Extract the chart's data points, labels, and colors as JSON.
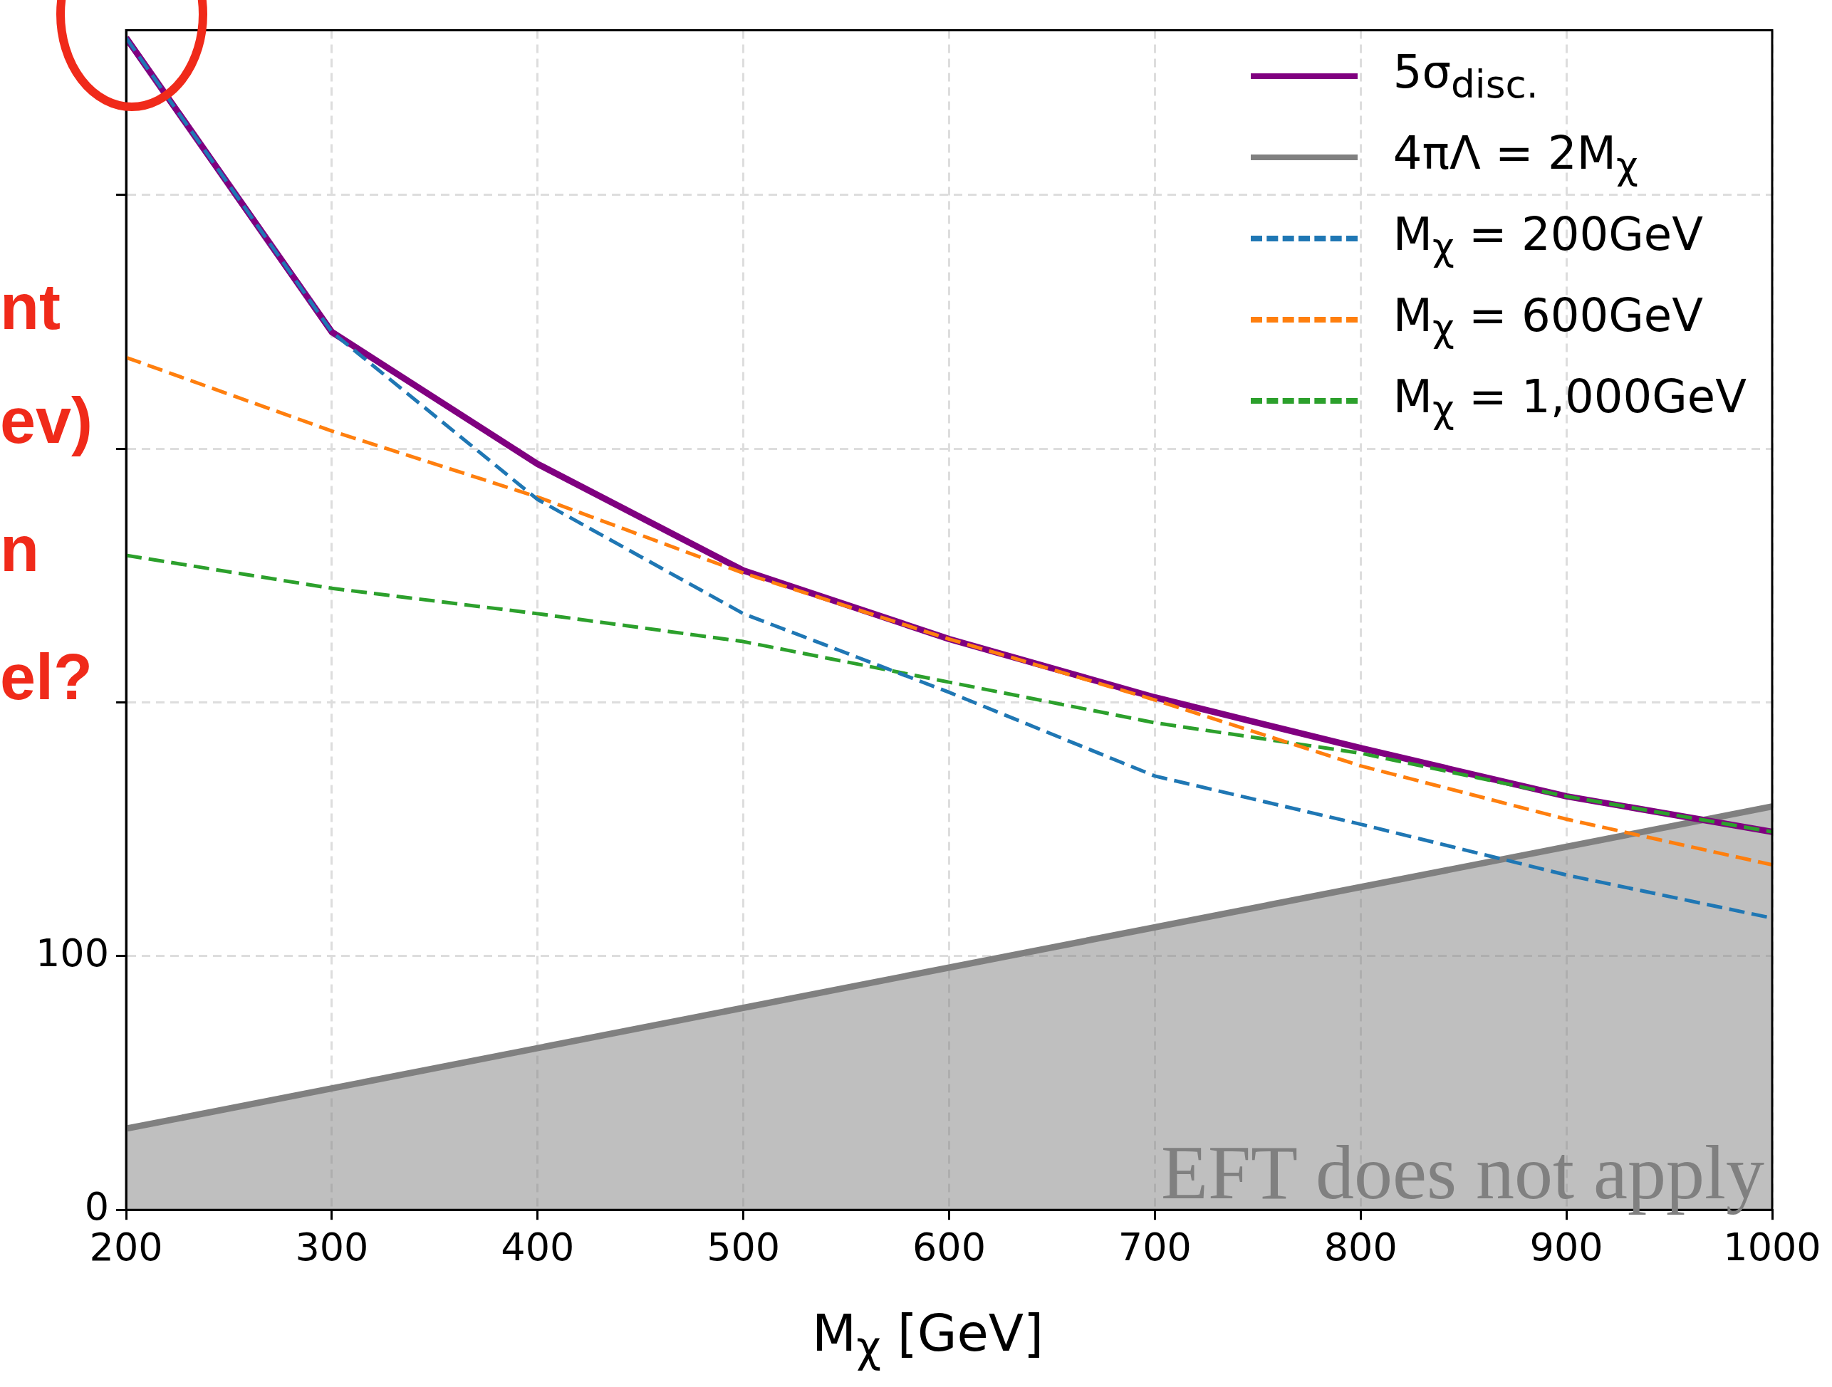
{
  "chart_data": {
    "type": "line",
    "xlabel": "M$_{χ}$ [GeV]",
    "xlim": [
      200,
      1000
    ],
    "xticks": [
      200,
      300,
      400,
      500,
      600,
      700,
      800,
      900,
      1000
    ],
    "ylim": [
      0,
      465
    ],
    "yticks": [
      0,
      100,
      {
        "value": 200,
        "label": null
      },
      {
        "value": 300,
        "label": null
      },
      {
        "value": 400,
        "label": null
      }
    ],
    "grid": true,
    "legend": "top right",
    "marker": "none",
    "annotations": [
      "EFT does not apply",
      "nt",
      "ev)",
      "n",
      "el?"
    ],
    "series": [
      {
        "name": "5σ$_{disc.}$",
        "color": "#800080",
        "line_style": "solid",
        "x": [
          200,
          300,
          400,
          500,
          600,
          700,
          800,
          900,
          1000
        ],
        "values": [
          462,
          346,
          294,
          252,
          225,
          202,
          182,
          163,
          149
        ]
      },
      {
        "name": "4πΛ = 2M$_{χ}$",
        "type": "area",
        "color": "#808080",
        "line_style": "solid",
        "x": [
          200,
          1000
        ],
        "values": [
          32,
          159
        ]
      },
      {
        "name": "M$_{χ}$ = 200GeV",
        "color": "#1f77b4",
        "line_style": "dashed",
        "x": [
          200,
          300,
          400,
          500,
          600,
          700,
          800,
          900,
          1000
        ],
        "values": [
          462,
          346,
          280,
          235,
          204,
          171,
          152,
          132,
          115
        ]
      },
      {
        "name": "M$_{χ}$ = 600GeV",
        "color": "#ff7f0e",
        "line_style": "dashed",
        "x": [
          200,
          300,
          400,
          500,
          600,
          700,
          800,
          900,
          1000
        ],
        "values": [
          336,
          307,
          281,
          251,
          225,
          201,
          175,
          154,
          136
        ]
      },
      {
        "name": "M$_{χ}$ = 1,000GeV",
        "color": "#2ca02c",
        "line_style": "dashed",
        "x": [
          200,
          300,
          400,
          500,
          600,
          700,
          800,
          900,
          1000
        ],
        "values": [
          258,
          245,
          235,
          224,
          208,
          192,
          180,
          163,
          149
        ]
      }
    ]
  }
}
